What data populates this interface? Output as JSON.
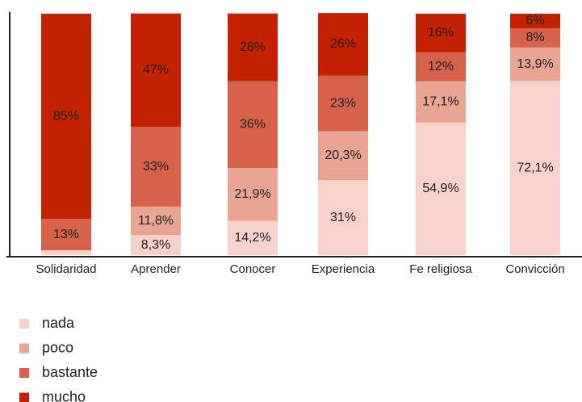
{
  "chart_data": {
    "type": "stacked_bar",
    "categories": [
      "Solidaridad",
      "Aprender",
      "Conocer",
      "Experiencia",
      "Fe religiosa",
      "Convicción"
    ],
    "ylim": [
      0,
      100
    ],
    "legend": "bottom-left",
    "series": [
      {
        "name": "nada",
        "color": "#f6d2ca",
        "values": [
          2,
          8.3,
          14.2,
          31,
          54.9,
          72.1
        ],
        "value_labels": [
          null,
          "8,3%",
          "14,2%",
          "31%",
          "54,9%",
          "72,1%"
        ]
      },
      {
        "name": "poco",
        "color": "#e9a494",
        "values": [
          0,
          11.8,
          21.9,
          20.3,
          17.1,
          13.9
        ],
        "value_labels": [
          null,
          "11,8%",
          "21,9%",
          "20,3%",
          "17,1%",
          "13,9%"
        ]
      },
      {
        "name": "bastante",
        "color": "#d6624c",
        "values": [
          13,
          33,
          36,
          23,
          12,
          8
        ],
        "value_labels": [
          "13%",
          "33%",
          "36%",
          "23%",
          "12%",
          "8%"
        ]
      },
      {
        "name": "mucho",
        "color": "#c42100",
        "values": [
          85,
          47,
          28,
          26,
          16,
          6
        ],
        "value_labels": [
          "85%",
          "47%",
          "28%",
          "26%",
          "16%",
          "6%"
        ]
      }
    ]
  }
}
